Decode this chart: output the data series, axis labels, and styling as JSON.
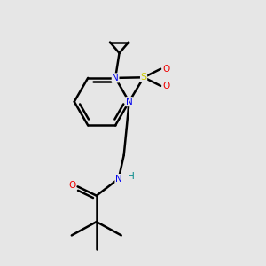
{
  "background_color": "#e6e6e6",
  "atom_colors": {
    "C": "#000000",
    "N": "#0000ee",
    "S": "#cccc00",
    "O": "#ee0000",
    "H": "#008888"
  },
  "bond_color": "#000000",
  "bond_width": 1.8
}
